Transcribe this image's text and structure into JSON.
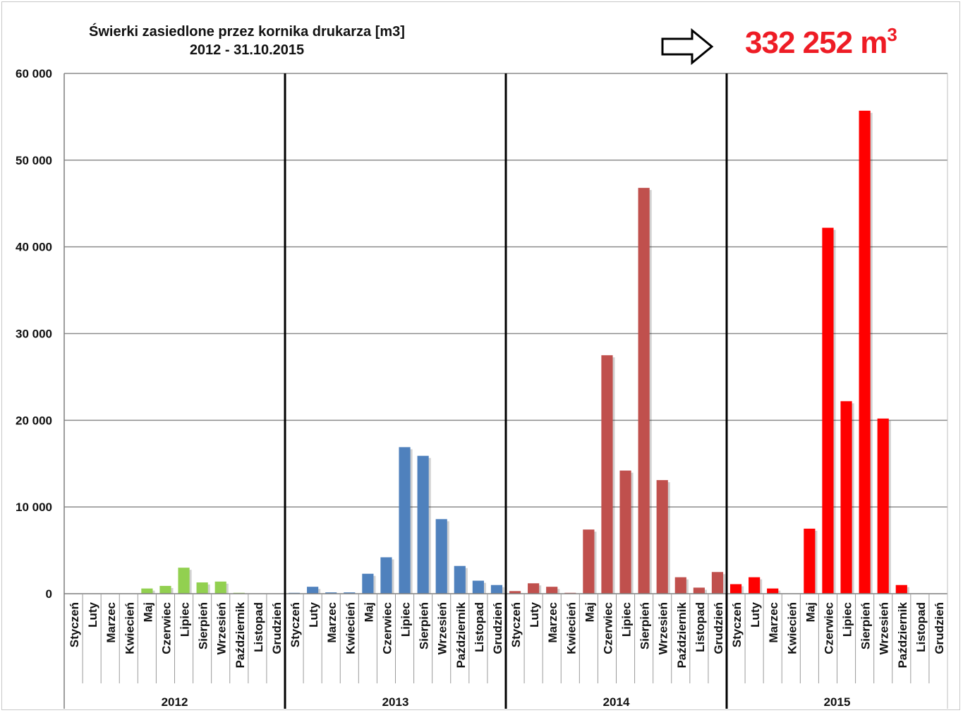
{
  "chart_data": {
    "type": "bar",
    "title": "Świerki zasiedlone przez kornika drukarza [m3]",
    "subtitle": "2012 - 31.10.2015",
    "annotation": {
      "value": "332 252 m",
      "superscript": "3",
      "color": "#ee1c25"
    },
    "ylim": [
      0,
      60000
    ],
    "y_ticks": [
      {
        "value": 0,
        "label": "0"
      },
      {
        "value": 10000,
        "label": "10 000"
      },
      {
        "value": 20000,
        "label": "20 000"
      },
      {
        "value": 30000,
        "label": "30 000"
      },
      {
        "value": 40000,
        "label": "40 000"
      },
      {
        "value": 50000,
        "label": "50 000"
      },
      {
        "value": 60000,
        "label": "60 000"
      }
    ],
    "months": [
      "Styczeń",
      "Luty",
      "Marzec",
      "Kwiecień",
      "Maj",
      "Czerwiec",
      "Lipiec",
      "Sierpień",
      "Wrzesień",
      "Październik",
      "Listopad",
      "Grudzień"
    ],
    "grid": true,
    "groups": [
      {
        "year": "2012",
        "color": "#92d050",
        "values": [
          0,
          0,
          0,
          0,
          600,
          900,
          3000,
          1300,
          1400,
          100,
          0,
          0
        ]
      },
      {
        "year": "2013",
        "color": "#4f81bd",
        "values": [
          100,
          800,
          150,
          150,
          2300,
          4200,
          16900,
          15900,
          8600,
          3200,
          1500,
          1000
        ]
      },
      {
        "year": "2014",
        "color": "#c0504d",
        "values": [
          300,
          1200,
          800,
          100,
          7400,
          27500,
          14200,
          46800,
          13100,
          1900,
          700,
          2500
        ]
      },
      {
        "year": "2015",
        "color": "#ff0000",
        "values": [
          1100,
          1900,
          600,
          0,
          7500,
          42200,
          22200,
          55700,
          20200,
          1000,
          0,
          0
        ]
      }
    ]
  }
}
